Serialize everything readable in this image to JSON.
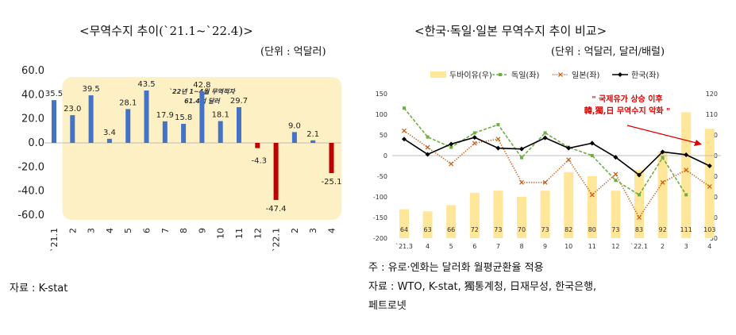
{
  "left": {
    "title": "<무역수지 추이(`21.1~`22.4)>",
    "unit": "(단위 : 억달러)",
    "source": "자료 : K-stat",
    "callout_line1": "`22년 1~4월 무역적자",
    "callout_line2": "61.4억 달러",
    "colors": {
      "positive": "#4472c4",
      "negative": "#c00000",
      "highlight": "#fdf0c4"
    }
  },
  "right": {
    "title": "<한국·독일·일본 무역수지 추이 비교>",
    "unit": "(단위 : 억달러, 달러/배럴)",
    "annotation_line1": "\" 국제유가 상승 이후",
    "annotation_line2": "韓,獨,日 무역수지 악화 \"",
    "note1": "주 : 유로·엔화는 달러화 월평균환율 적용",
    "note2": "자료 : WTO, K-stat, 獨통계청, 日재무성, 한국은행,",
    "note3": "페트로넷",
    "colors": {
      "dubai": "#ffe699",
      "germany": "#70ad47",
      "japan": "#c55a11",
      "korea": "#000000",
      "annotation": "#e00000"
    }
  },
  "chart_data": [
    {
      "type": "bar",
      "categories": [
        "`21.1",
        "2",
        "3",
        "4",
        "5",
        "6",
        "7",
        "8",
        "9",
        "10",
        "11",
        "12",
        "`22.1",
        "2",
        "3",
        "4"
      ],
      "values": [
        35.5,
        23.0,
        39.5,
        3.4,
        28.1,
        43.5,
        17.9,
        15.8,
        42.8,
        18.1,
        29.7,
        -4.3,
        -47.4,
        9.0,
        2.1,
        -25.1
      ],
      "value_labels": [
        "35.5",
        "23.0",
        "39.5",
        "3.4",
        "28.1",
        "43.5",
        "17.9",
        "15.8",
        "42.8",
        "18.1",
        "29.7",
        "-4.3",
        "-47.4",
        "9.0",
        "2.1",
        "-25.1"
      ],
      "yticks": [
        "60.0",
        "40.0",
        "20.0",
        "0.0",
        "-20.0",
        "-40.0",
        "-60.0"
      ],
      "ylim": [
        -60,
        60
      ],
      "highlight_categories": [
        "12",
        "`22.1",
        "2",
        "3",
        "4"
      ],
      "grid": false
    },
    {
      "type": "line",
      "categories": [
        "`21.3",
        "4",
        "5",
        "6",
        "7",
        "8",
        "9",
        "10",
        "11",
        "12",
        "`22.1",
        "2",
        "3",
        "4"
      ],
      "series": [
        {
          "name": "두바이유(우)",
          "kind": "bar",
          "axis": "right",
          "values": [
            64,
            63,
            66,
            72,
            73,
            70,
            73,
            82,
            80,
            73,
            83,
            92,
            111,
            103
          ]
        },
        {
          "name": "독일(좌)",
          "kind": "line-dashed",
          "axis": "left",
          "values": [
            115,
            45,
            20,
            55,
            75,
            -5,
            55,
            20,
            0,
            -60,
            -95,
            -5,
            -95,
            null
          ]
        },
        {
          "name": "일본(좌)",
          "kind": "line-dotted",
          "axis": "left",
          "values": [
            60,
            20,
            -20,
            30,
            40,
            -65,
            -65,
            -10,
            -95,
            -45,
            -150,
            -65,
            -35,
            -75
          ]
        },
        {
          "name": "한국(좌)",
          "kind": "line-solid",
          "axis": "left",
          "values": [
            40,
            3,
            28,
            44,
            18,
            16,
            43,
            18,
            30,
            -4,
            -47,
            9,
            2,
            -25
          ]
        }
      ],
      "bar_labels": [
        "64",
        "63",
        "66",
        "72",
        "73",
        "70",
        "73",
        "82",
        "80",
        "73",
        "83",
        "92",
        "111",
        "103"
      ],
      "yticks_left": [
        "150",
        "100",
        "50",
        "0",
        "-50",
        "-100",
        "-150",
        "-200"
      ],
      "yticks_right": [
        "120",
        "110",
        "100",
        "90",
        "80",
        "70",
        "60",
        "50"
      ],
      "ylim_left": [
        -200,
        150
      ],
      "ylim_right": [
        50,
        120
      ],
      "legend_position": "top",
      "grid": false
    }
  ]
}
